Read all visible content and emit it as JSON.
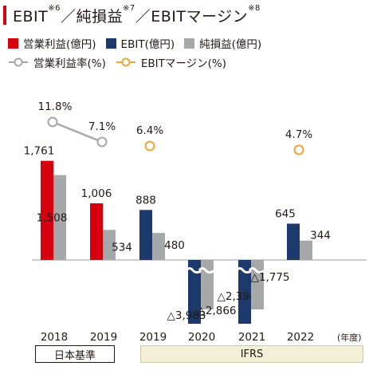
{
  "title": {
    "main": "EBIT",
    "note1": "※6",
    "sep1": "／純損益",
    "note2": "※7",
    "sep2": "／EBITマージン",
    "note3": "※8"
  },
  "legend": [
    {
      "label": "営業利益(億円)",
      "kind": "bar",
      "color": "#d7000f"
    },
    {
      "label": "EBIT(億円)",
      "kind": "bar",
      "color": "#1b3a6b"
    },
    {
      "label": "純損益(億円)",
      "kind": "bar",
      "color": "#a7a8a9"
    },
    {
      "label": "営業利益率(%)",
      "kind": "line",
      "color": "#a7a8a9"
    },
    {
      "label": "EBITマージン(%)",
      "kind": "line",
      "color": "#f0a433"
    }
  ],
  "chart_data": {
    "type": "bar",
    "categories": [
      "2018",
      "2019",
      "2019",
      "2020",
      "2021",
      "2022"
    ],
    "year_unit": "(年度)",
    "series": [
      {
        "name": "営業利益(億円)",
        "color": "#d7000f",
        "values": [
          1761,
          1006,
          null,
          null,
          null,
          null
        ],
        "labels": [
          "1,761",
          "1,006",
          "",
          "",
          "",
          ""
        ]
      },
      {
        "name": "EBIT(億円)",
        "color": "#1b3a6b",
        "values": [
          null,
          null,
          888,
          -3983,
          -2394,
          645
        ],
        "labels": [
          "",
          "",
          "888",
          "△3,983",
          "△2,394",
          "645"
        ]
      },
      {
        "name": "純損益(億円)",
        "color": "#a7a8a9",
        "values": [
          1508,
          534,
          480,
          -2866,
          -1775,
          344
        ],
        "labels": [
          "1,508",
          "534",
          "480",
          "△2,866",
          "△1,775",
          "344"
        ]
      }
    ],
    "lines": [
      {
        "name": "営業利益率(%)",
        "color": "#a7a8a9",
        "values": [
          11.8,
          7.1,
          null,
          null,
          null,
          null
        ],
        "labels": [
          "11.8%",
          "7.1%",
          "",
          "",
          "",
          ""
        ]
      },
      {
        "name": "EBITマージン(%)",
        "color": "#f0a433",
        "values": [
          null,
          null,
          6.4,
          null,
          null,
          4.7
        ],
        "labels": [
          "",
          "",
          "6.4%",
          "",
          "",
          "4.7%"
        ]
      }
    ],
    "axis_break": "negative bars truncated with a break mark",
    "grid": false
  },
  "eras": [
    {
      "label": "日本基準"
    },
    {
      "label": "IFRS"
    }
  ]
}
